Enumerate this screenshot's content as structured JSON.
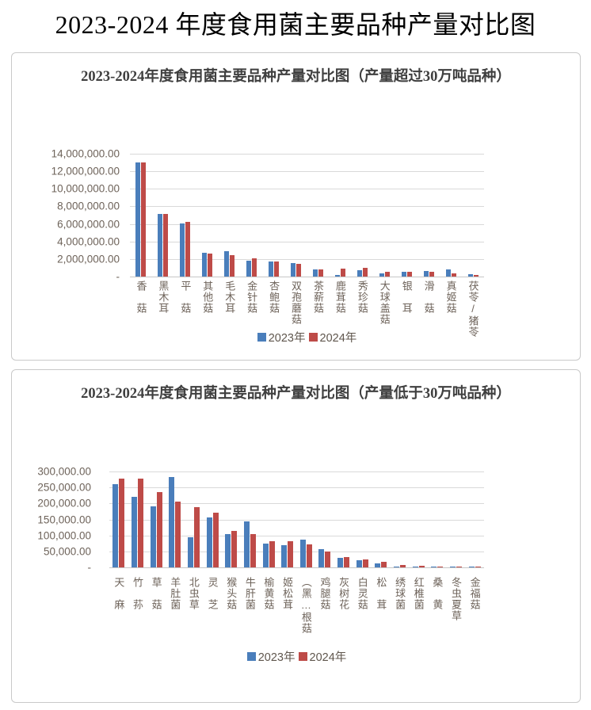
{
  "page": {
    "title": "2023-2024 年度食用菌主要品种产量对比图"
  },
  "colors": {
    "series_2023": "#4a7ebb",
    "series_2024": "#be4b48",
    "gridline": "#d9d9d9",
    "axis_text": "#6e635a",
    "chart_title_text": "#3f3f3f",
    "card_border": "#c9c9c9"
  },
  "chart_data": [
    {
      "type": "bar",
      "title": "2023-2024年度食用菌主要品种产量对比图（产量超过30万吨品种）",
      "grid": true,
      "legend_position": "bottom",
      "ylim": [
        0,
        14000000
      ],
      "ytick_step": 2000000,
      "ytick_labels": [
        "14,000,000.00",
        "12,000,000.00",
        "10,000,000.00",
        "8,000,000.00",
        "6,000,000.00",
        "4,000,000.00",
        "2,000,000.00",
        "-"
      ],
      "categories": [
        "香　菇",
        "黑木耳",
        "平　菇",
        "其他菇",
        "毛木耳",
        "金针菇",
        "杏鲍菇",
        "双孢蘑菇",
        "茶薪菇",
        "鹿茸菇",
        "秀珍菇",
        "大球盖菇",
        "银　耳",
        "滑　菇",
        "真姬菇",
        "茯苓/猪苓"
      ],
      "series": [
        {
          "name": "2023年",
          "color": "#4a7ebb",
          "values": [
            13000000,
            7100000,
            6050000,
            2700000,
            2850000,
            1850000,
            1700000,
            1550000,
            850000,
            150000,
            700000,
            370000,
            570000,
            600000,
            770000,
            230000
          ]
        },
        {
          "name": "2024年",
          "color": "#be4b48",
          "values": [
            13000000,
            7150000,
            6200000,
            2600000,
            2450000,
            2100000,
            1700000,
            1450000,
            850000,
            900000,
            1000000,
            500000,
            570000,
            530000,
            400000,
            170000
          ]
        }
      ]
    },
    {
      "type": "bar",
      "title": "2023-2024年度食用菌主要品种产量对比图（产量低于30万吨品种）",
      "grid": true,
      "legend_position": "bottom",
      "ylim": [
        0,
        300000
      ],
      "ytick_step": 50000,
      "ytick_labels": [
        "300,000.00",
        "250,000.00",
        "200,000.00",
        "150,000.00",
        "100,000.00",
        "50,000.00",
        "-"
      ],
      "categories": [
        "天　麻",
        "竹　荪",
        "草　菇",
        "羊肚菌",
        "北虫草",
        "灵　芝",
        "猴头菇",
        "牛肝菌",
        "榆黄菇",
        "姬松茸",
        "（黑…根菇",
        "鸡腿菇",
        "灰树花",
        "白灵菇",
        "松　茸",
        "绣球菌",
        "红椎菌",
        "桑　黄",
        "冬虫夏草",
        "金福菇"
      ],
      "series": [
        {
          "name": "2023年",
          "color": "#4a7ebb",
          "values": [
            260000,
            220000,
            190000,
            282000,
            93000,
            157000,
            103000,
            143000,
            75000,
            70000,
            87000,
            57000,
            29000,
            22000,
            12000,
            3000,
            1500,
            1000,
            800,
            800
          ]
        },
        {
          "name": "2024年",
          "color": "#be4b48",
          "values": [
            278000,
            278000,
            236000,
            205000,
            188000,
            171000,
            114000,
            103000,
            82000,
            82000,
            71000,
            50000,
            33000,
            25000,
            18000,
            7000,
            5000,
            1200,
            800,
            800
          ]
        }
      ]
    }
  ]
}
